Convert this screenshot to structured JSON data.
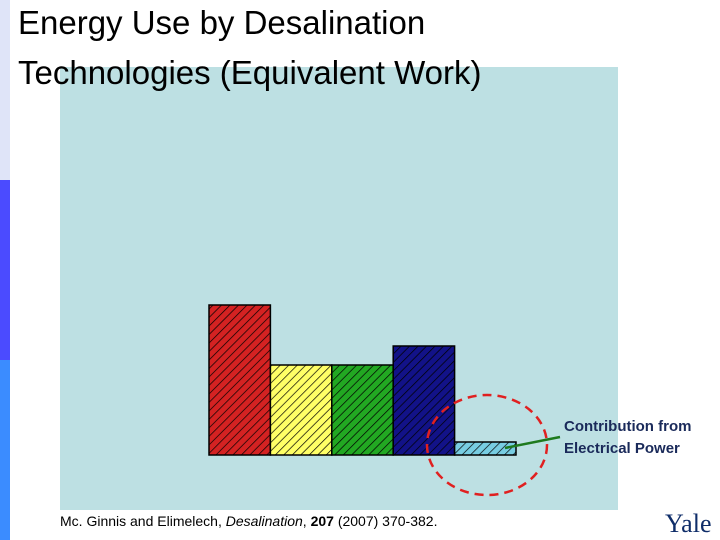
{
  "title_lines": [
    "Energy Use by Desalination",
    "Technologies (Equivalent Work)"
  ],
  "chart_data": {
    "type": "bar",
    "values": [
      150,
      90,
      90,
      109,
      13
    ],
    "colors": [
      "#d42222",
      "#ffff66",
      "#22a822",
      "#121288",
      "#78cde2"
    ],
    "ylim": [
      0,
      390
    ]
  },
  "annotation": [
    "Contribution from",
    "Electrical Power"
  ],
  "citation": [
    "Mc. Ginnis and Elimelech, ",
    "Desalination",
    ", ",
    "207",
    " (2007) 370-382."
  ],
  "logo": "Yale"
}
